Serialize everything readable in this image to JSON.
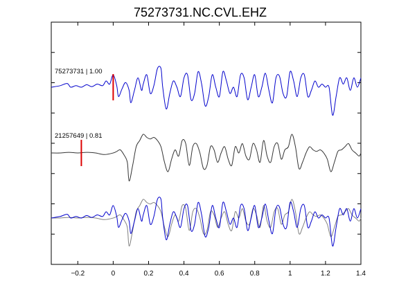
{
  "chart_data": {
    "type": "line",
    "title": "75273731.NC.CVL.EHZ",
    "xlabel": "",
    "ylabel": "",
    "xlim": [
      -0.35,
      1.4
    ],
    "x_ticks": [
      -0.2,
      0,
      0.2,
      0.4,
      0.6,
      0.8,
      1,
      1.2,
      1.4
    ],
    "x_tick_labels": [
      "−0.2",
      "0",
      "0.2",
      "0.4",
      "0.6",
      "0.8",
      "1",
      "1.2",
      "1.4"
    ],
    "y_tick_count": 7,
    "grid": false,
    "traces": [
      {
        "label": "75273731 | 1.00",
        "color": "#0000cc",
        "pick_time": 0.0,
        "pick_color": "#dd0000",
        "samples": [
          [
            -0.35,
            0.0
          ],
          [
            -0.3,
            0.05
          ],
          [
            -0.26,
            0.12
          ],
          [
            -0.24,
            0.0
          ],
          [
            -0.21,
            0.05
          ],
          [
            -0.18,
            0.0
          ],
          [
            -0.15,
            0.08
          ],
          [
            -0.12,
            0.02
          ],
          [
            -0.09,
            0.1
          ],
          [
            -0.06,
            0.05
          ],
          [
            -0.04,
            0.2
          ],
          [
            -0.02,
            0.1
          ],
          [
            0.0,
            0.4
          ],
          [
            0.02,
            0.05
          ],
          [
            0.03,
            -0.3
          ],
          [
            0.05,
            -0.05
          ],
          [
            0.07,
            0.15
          ],
          [
            0.09,
            -0.1
          ],
          [
            0.1,
            -0.5
          ],
          [
            0.12,
            -0.1
          ],
          [
            0.14,
            0.3
          ],
          [
            0.16,
            -0.1
          ],
          [
            0.17,
            0.1
          ],
          [
            0.19,
            0.4
          ],
          [
            0.21,
            -0.2
          ],
          [
            0.23,
            0.05
          ],
          [
            0.25,
            0.6
          ],
          [
            0.27,
            0.6
          ],
          [
            0.28,
            0.0
          ],
          [
            0.3,
            -0.7
          ],
          [
            0.32,
            -0.2
          ],
          [
            0.34,
            0.2
          ],
          [
            0.36,
            0.0
          ],
          [
            0.38,
            -0.3
          ],
          [
            0.4,
            0.3
          ],
          [
            0.42,
            0.4
          ],
          [
            0.44,
            -0.4
          ],
          [
            0.46,
            -0.2
          ],
          [
            0.48,
            0.5
          ],
          [
            0.5,
            0.1
          ],
          [
            0.52,
            -0.6
          ],
          [
            0.54,
            -0.3
          ],
          [
            0.56,
            0.4
          ],
          [
            0.58,
            0.0
          ],
          [
            0.6,
            -0.3
          ],
          [
            0.62,
            0.5
          ],
          [
            0.64,
            0.2
          ],
          [
            0.66,
            -0.2
          ],
          [
            0.68,
            0.0
          ],
          [
            0.7,
            -0.3
          ],
          [
            0.72,
            0.4
          ],
          [
            0.74,
            0.3
          ],
          [
            0.76,
            -0.4
          ],
          [
            0.78,
            0.0
          ],
          [
            0.8,
            0.4
          ],
          [
            0.82,
            -0.3
          ],
          [
            0.84,
            0.0
          ],
          [
            0.86,
            0.45
          ],
          [
            0.88,
            -0.1
          ],
          [
            0.9,
            -0.5
          ],
          [
            0.92,
            0.3
          ],
          [
            0.94,
            0.35
          ],
          [
            0.96,
            -0.2
          ],
          [
            0.98,
            -0.3
          ],
          [
            1.0,
            0.5
          ],
          [
            1.02,
            0.2
          ],
          [
            1.04,
            -0.3
          ],
          [
            1.06,
            0.3
          ],
          [
            1.08,
            0.4
          ],
          [
            1.1,
            -0.3
          ],
          [
            1.12,
            -0.1
          ],
          [
            1.14,
            0.2
          ],
          [
            1.16,
            0.0
          ],
          [
            1.18,
            0.1
          ],
          [
            1.2,
            0.0
          ],
          [
            1.22,
            0.0
          ],
          [
            1.24,
            -0.9
          ],
          [
            1.26,
            -0.3
          ],
          [
            1.28,
            0.3
          ],
          [
            1.3,
            0.1
          ],
          [
            1.32,
            0.3
          ],
          [
            1.34,
            -0.1
          ],
          [
            1.36,
            0.3
          ],
          [
            1.38,
            0.0
          ],
          [
            1.4,
            0.3
          ]
        ]
      },
      {
        "label": "21257649 | 0.81",
        "color": "#333333",
        "pick_time": -0.18,
        "pick_color": "#dd0000",
        "samples": [
          [
            -0.35,
            0.0
          ],
          [
            -0.3,
            0.0
          ],
          [
            -0.25,
            0.02
          ],
          [
            -0.2,
            0.0
          ],
          [
            -0.15,
            0.02
          ],
          [
            -0.1,
            0.0
          ],
          [
            -0.05,
            -0.05
          ],
          [
            0.0,
            0.0
          ],
          [
            0.02,
            0.05
          ],
          [
            0.04,
            0.1
          ],
          [
            0.06,
            -0.05
          ],
          [
            0.08,
            -0.3
          ],
          [
            0.09,
            -0.9
          ],
          [
            0.11,
            -0.4
          ],
          [
            0.13,
            0.2
          ],
          [
            0.15,
            0.4
          ],
          [
            0.17,
            0.6
          ],
          [
            0.19,
            0.5
          ],
          [
            0.21,
            0.45
          ],
          [
            0.23,
            0.5
          ],
          [
            0.25,
            0.4
          ],
          [
            0.27,
            0.2
          ],
          [
            0.29,
            -0.3
          ],
          [
            0.31,
            -0.6
          ],
          [
            0.33,
            -0.2
          ],
          [
            0.35,
            0.1
          ],
          [
            0.37,
            -0.1
          ],
          [
            0.39,
            0.4
          ],
          [
            0.41,
            0.3
          ],
          [
            0.43,
            -0.4
          ],
          [
            0.45,
            0.2
          ],
          [
            0.47,
            0.3
          ],
          [
            0.49,
            0.0
          ],
          [
            0.51,
            -0.5
          ],
          [
            0.53,
            -0.4
          ],
          [
            0.55,
            0.2
          ],
          [
            0.57,
            0.1
          ],
          [
            0.59,
            -0.3
          ],
          [
            0.61,
            0.0
          ],
          [
            0.63,
            0.2
          ],
          [
            0.65,
            -0.2
          ],
          [
            0.67,
            -0.4
          ],
          [
            0.69,
            0.2
          ],
          [
            0.71,
            0.0
          ],
          [
            0.73,
            0.3
          ],
          [
            0.75,
            -0.1
          ],
          [
            0.77,
            -0.2
          ],
          [
            0.79,
            0.3
          ],
          [
            0.81,
            0.1
          ],
          [
            0.83,
            -0.3
          ],
          [
            0.85,
            0.4
          ],
          [
            0.87,
            -0.1
          ],
          [
            0.89,
            -0.3
          ],
          [
            0.91,
            0.2
          ],
          [
            0.93,
            0.3
          ],
          [
            0.95,
            -0.2
          ],
          [
            0.97,
            0.1
          ],
          [
            0.99,
            0.2
          ],
          [
            1.01,
            0.6
          ],
          [
            1.03,
            0.2
          ],
          [
            1.05,
            -0.5
          ],
          [
            1.07,
            -0.3
          ],
          [
            1.09,
            0.0
          ],
          [
            1.11,
            0.2
          ],
          [
            1.13,
            0.1
          ],
          [
            1.15,
            0.05
          ],
          [
            1.17,
            0.1
          ],
          [
            1.19,
            0.0
          ],
          [
            1.21,
            -0.2
          ],
          [
            1.23,
            -0.6
          ],
          [
            1.25,
            -0.3
          ],
          [
            1.27,
            0.05
          ],
          [
            1.29,
            0.1
          ],
          [
            1.31,
            0.2
          ],
          [
            1.33,
            0.3
          ],
          [
            1.35,
            0.1
          ],
          [
            1.37,
            0.0
          ],
          [
            1.39,
            -0.1
          ],
          [
            1.4,
            0.0
          ]
        ]
      }
    ]
  }
}
